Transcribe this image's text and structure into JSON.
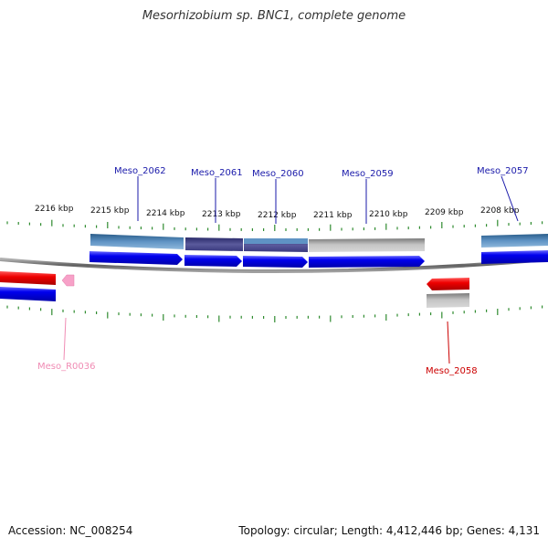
{
  "title": "Mesorhizobium sp. BNC1, complete genome",
  "footer": {
    "accession": "Accession: NC_008254",
    "summary": "Topology: circular; Length: 4,412,446 bp; Genes: 4,131"
  },
  "ruler": {
    "ticks": [
      "2216 kbp",
      "2215 kbp",
      "2214 kbp",
      "2213 kbp",
      "2212 kbp",
      "2211 kbp",
      "2210 kbp",
      "2209 kbp",
      "2208 kbp"
    ]
  },
  "genes": [
    {
      "id": "Meso_2062",
      "color": "#1a1aaa"
    },
    {
      "id": "Meso_2061",
      "color": "#1a1aaa"
    },
    {
      "id": "Meso_2060",
      "color": "#1a1aaa"
    },
    {
      "id": "Meso_2059",
      "color": "#1a1aaa"
    },
    {
      "id": "Meso_2057",
      "color": "#1a1aaa"
    },
    {
      "id": "Meso_R0036",
      "color": "#f08cb4"
    },
    {
      "id": "Meso_2058",
      "color": "#cc0000"
    }
  ],
  "colors": {
    "forward_cds": "#0000ee",
    "reverse_cds": "#ee0000",
    "rna": "#f7a1c8",
    "tick": "#2e8b2e",
    "backbone": "#808080"
  }
}
